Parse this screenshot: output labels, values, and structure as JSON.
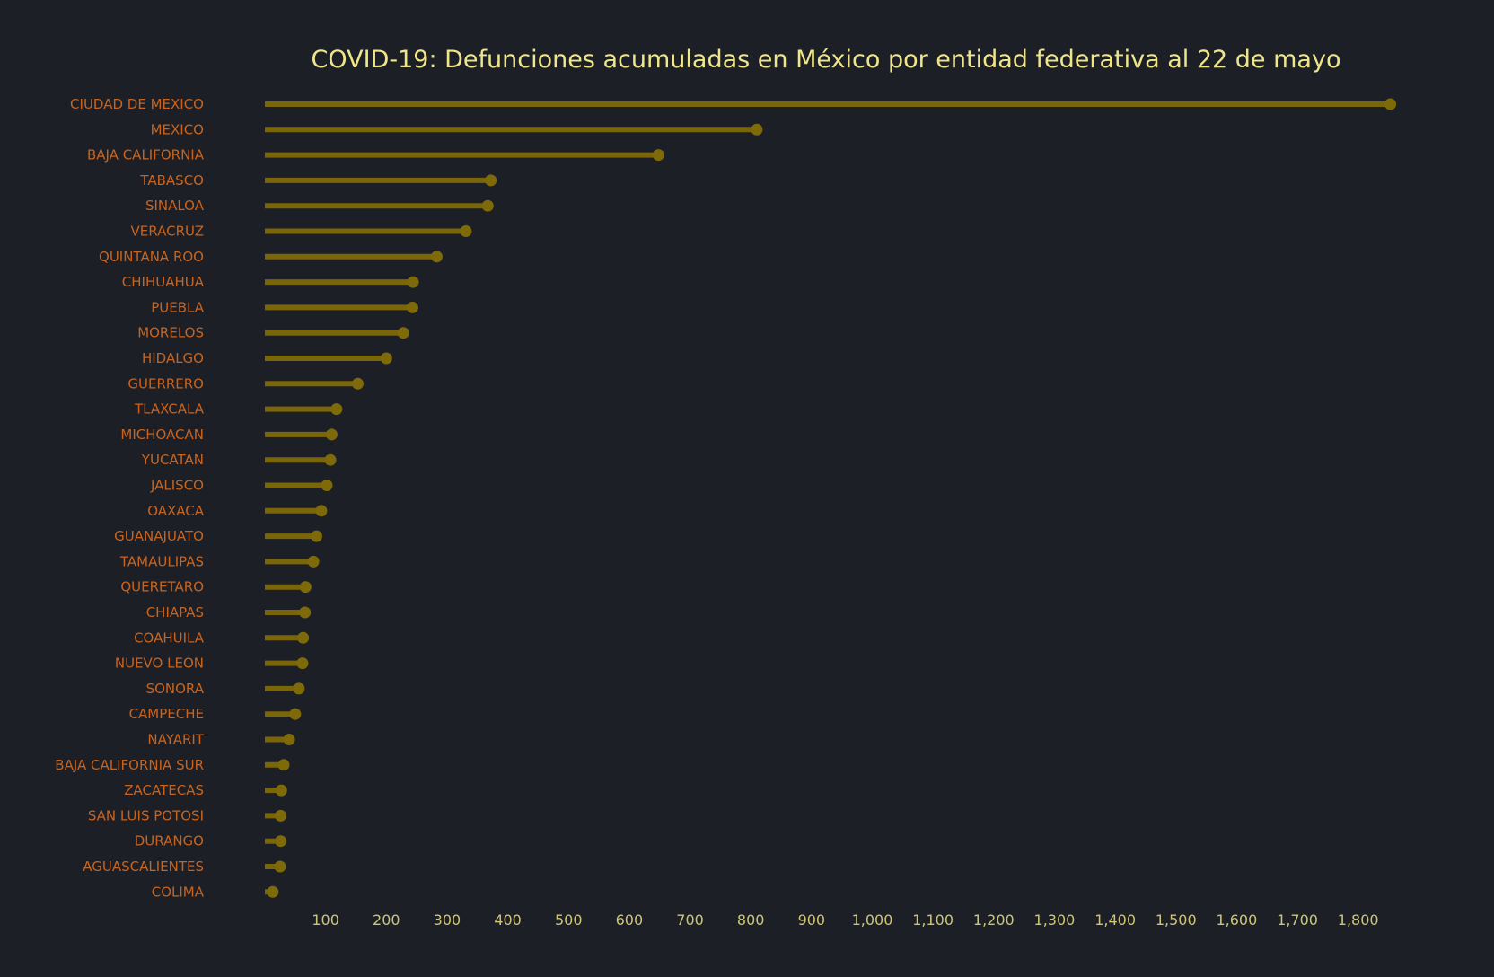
{
  "chart_data": {
    "type": "lollipop",
    "title": "COVID-19: Defunciones acumuladas en México por entidad federativa al 22 de mayo",
    "xlabel": "",
    "ylabel": "",
    "xlim": [
      0,
      1890
    ],
    "xticks": [
      100,
      200,
      300,
      400,
      500,
      600,
      700,
      800,
      900,
      1000,
      1100,
      1200,
      1300,
      1400,
      1500,
      1600,
      1700,
      1800
    ],
    "xtick_labels": [
      "100",
      "200",
      "300",
      "400",
      "500",
      "600",
      "700",
      "800",
      "900",
      "1,000",
      "1,100",
      "1,200",
      "1,300",
      "1,400",
      "1,500",
      "1,600",
      "1,700",
      "1,800"
    ],
    "grid": false,
    "categories": [
      "CIUDAD DE MEXICO",
      "MEXICO",
      "BAJA CALIFORNIA",
      "TABASCO",
      "SINALOA",
      "VERACRUZ",
      "QUINTANA ROO",
      "CHIHUAHUA",
      "PUEBLA",
      "MORELOS",
      "HIDALGO",
      "GUERRERO",
      "TLAXCALA",
      "MICHOACAN",
      "YUCATAN",
      "JALISCO",
      "OAXACA",
      "GUANAJUATO",
      "TAMAULIPAS",
      "QUERETARO",
      "CHIAPAS",
      "COAHUILA",
      "NUEVO LEON",
      "SONORA",
      "CAMPECHE",
      "NAYARIT",
      "BAJA CALIFORNIA SUR",
      "ZACATECAS",
      "SAN LUIS POTOSI",
      "DURANGO",
      "AGUASCALIENTES",
      "COLIMA"
    ],
    "values": [
      1853,
      810,
      648,
      372,
      367,
      331,
      283,
      244,
      243,
      228,
      200,
      153,
      118,
      110,
      108,
      102,
      93,
      85,
      80,
      67,
      66,
      63,
      62,
      56,
      50,
      40,
      31,
      27,
      26,
      26,
      25,
      13
    ],
    "colors": {
      "background": "#1c1f26",
      "stem": "#7a6508",
      "marker": "#7f6a0a",
      "title": "#efe58a",
      "category_label": "#c8641e",
      "tick_label": "#cfc675"
    }
  }
}
